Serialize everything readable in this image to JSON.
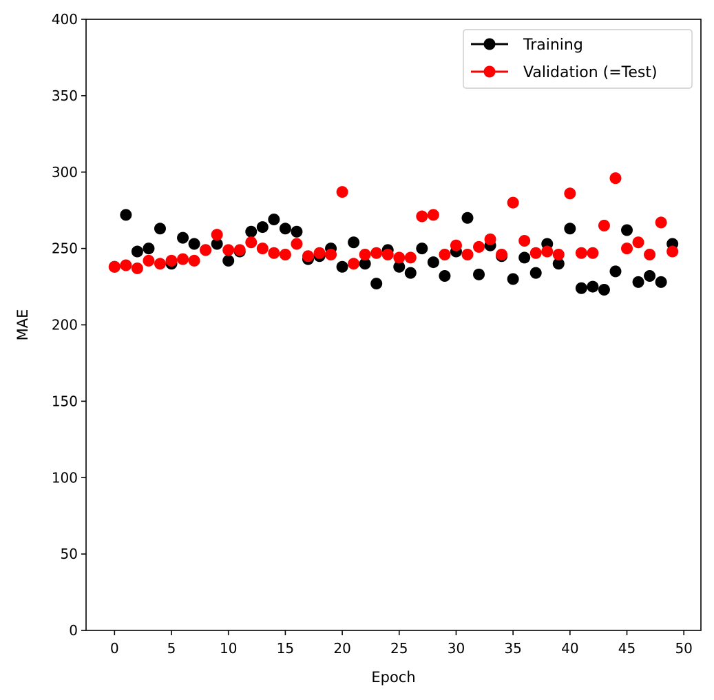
{
  "chart_data": {
    "type": "scatter",
    "title": "",
    "xlabel": "Epoch",
    "ylabel": "MAE",
    "xlim": [
      -2.5,
      51.5
    ],
    "ylim": [
      0,
      400
    ],
    "xticks": [
      0,
      5,
      10,
      15,
      20,
      25,
      30,
      35,
      40,
      45,
      50
    ],
    "yticks": [
      0,
      50,
      100,
      150,
      200,
      250,
      300,
      350,
      400
    ],
    "grid": false,
    "legend_position": "top-right",
    "x": [
      0,
      1,
      2,
      3,
      4,
      5,
      6,
      7,
      8,
      9,
      10,
      11,
      12,
      13,
      14,
      15,
      16,
      17,
      18,
      19,
      20,
      21,
      22,
      23,
      24,
      25,
      26,
      27,
      28,
      29,
      30,
      31,
      32,
      33,
      34,
      35,
      36,
      37,
      38,
      39,
      40,
      41,
      42,
      43,
      44,
      45,
      46,
      47,
      48,
      49
    ],
    "series": [
      {
        "name": "Training",
        "color": "#000000",
        "values": [
          238,
          272,
          248,
          250,
          263,
          240,
          257,
          253,
          249,
          253,
          242,
          248,
          261,
          264,
          269,
          263,
          261,
          243,
          245,
          250,
          238,
          254,
          240,
          227,
          249,
          238,
          234,
          250,
          241,
          232,
          248,
          270,
          233,
          252,
          245,
          230,
          244,
          234,
          253,
          240,
          263,
          224,
          225,
          223,
          235,
          262,
          228,
          232,
          228,
          253
        ]
      },
      {
        "name": "Validation (=Test)",
        "color": "#ff0000",
        "values": [
          238,
          239,
          237,
          242,
          240,
          242,
          243,
          242,
          249,
          259,
          249,
          249,
          254,
          250,
          247,
          246,
          253,
          245,
          247,
          246,
          287,
          240,
          246,
          247,
          246,
          244,
          244,
          271,
          272,
          246,
          252,
          246,
          251,
          256,
          246,
          280,
          255,
          247,
          248,
          246,
          286,
          247,
          247,
          265,
          296,
          250,
          254,
          246,
          267,
          248
        ]
      }
    ]
  }
}
